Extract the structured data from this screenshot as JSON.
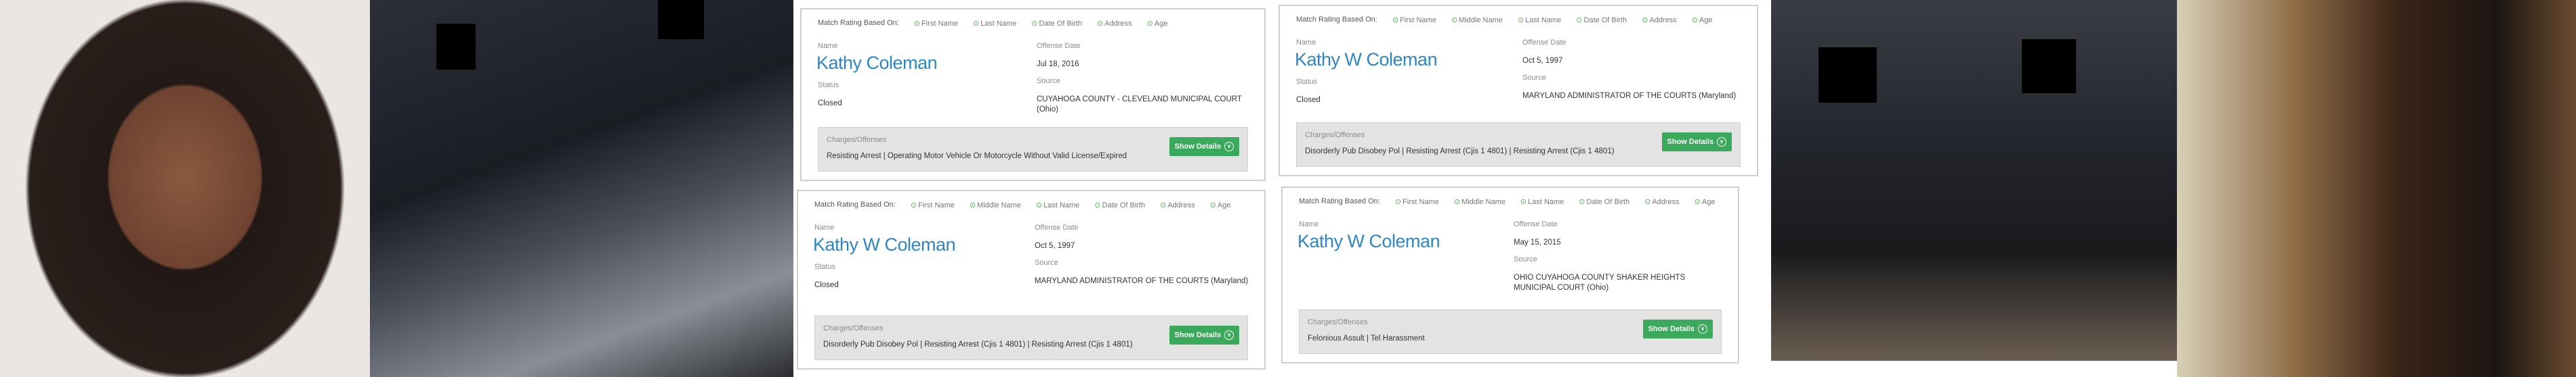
{
  "match_label": "Match Rating Based On:",
  "labels": {
    "name": "Name",
    "status": "Status",
    "offense_date": "Offense Date",
    "source": "Source",
    "charges": "Charges/Offenses",
    "show_details": "Show Details"
  },
  "colors": {
    "name_blue": "#2f86c0",
    "button_green": "#3aa95c",
    "check_green": "#4caf50",
    "charges_bg": "#e3e3e3"
  },
  "icons": {
    "criteria": "check-circle-icon",
    "button": "chevron-down-circle-icon"
  },
  "cards": [
    {
      "criteria": [
        "First Name",
        "Last Name",
        "Date Of Birth",
        "Address",
        "Age"
      ],
      "name": "Kathy Coleman",
      "status": "Closed",
      "offense_date": "Jul 18, 2016",
      "source": "CUYAHOGA COUNTY - CLEVELAND MUNICIPAL COURT (Ohio)",
      "charges": "Resisting Arrest | Operating Motor Vehicle Or Motorcycle Without Valid License/Expired"
    },
    {
      "criteria": [
        "First Name",
        "Middle Name",
        "Last Name",
        "Date Of Birth",
        "Address",
        "Age"
      ],
      "name": "Kathy W Coleman",
      "status": "Closed",
      "offense_date": "Oct 5, 1997",
      "source": "MARYLAND ADMINISTRATOR OF THE COURTS (Maryland)",
      "charges": "Disorderly Pub Disobey Pol | Resisting Arrest (Cjis 1 4801) | Resisting Arrest (Cjis 1 4801)"
    },
    {
      "criteria": [
        "First Name",
        "Middle Name",
        "Last Name",
        "Date Of Birth",
        "Address",
        "Age"
      ],
      "name": "Kathy W Coleman",
      "status": "Closed",
      "offense_date": "Oct 5, 1997",
      "source": "MARYLAND ADMINISTRATOR OF THE COURTS (Maryland)",
      "charges": "Disorderly Pub Disobey Pol | Resisting Arrest (Cjis 1 4801) | Resisting Arrest (Cjis 1 4801)"
    },
    {
      "criteria": [
        "First Name",
        "Middle Name",
        "Last Name",
        "Date Of Birth",
        "Address",
        "Age"
      ],
      "name": "Kathy W Coleman",
      "offense_date": "May 15, 2015",
      "source": "OHIO CUYAHOGA COUNTY SHAKER HEIGHTS MUNICIPAL COURT (Ohio)",
      "charges": "Felonious Assult | Tel Harassment"
    }
  ]
}
